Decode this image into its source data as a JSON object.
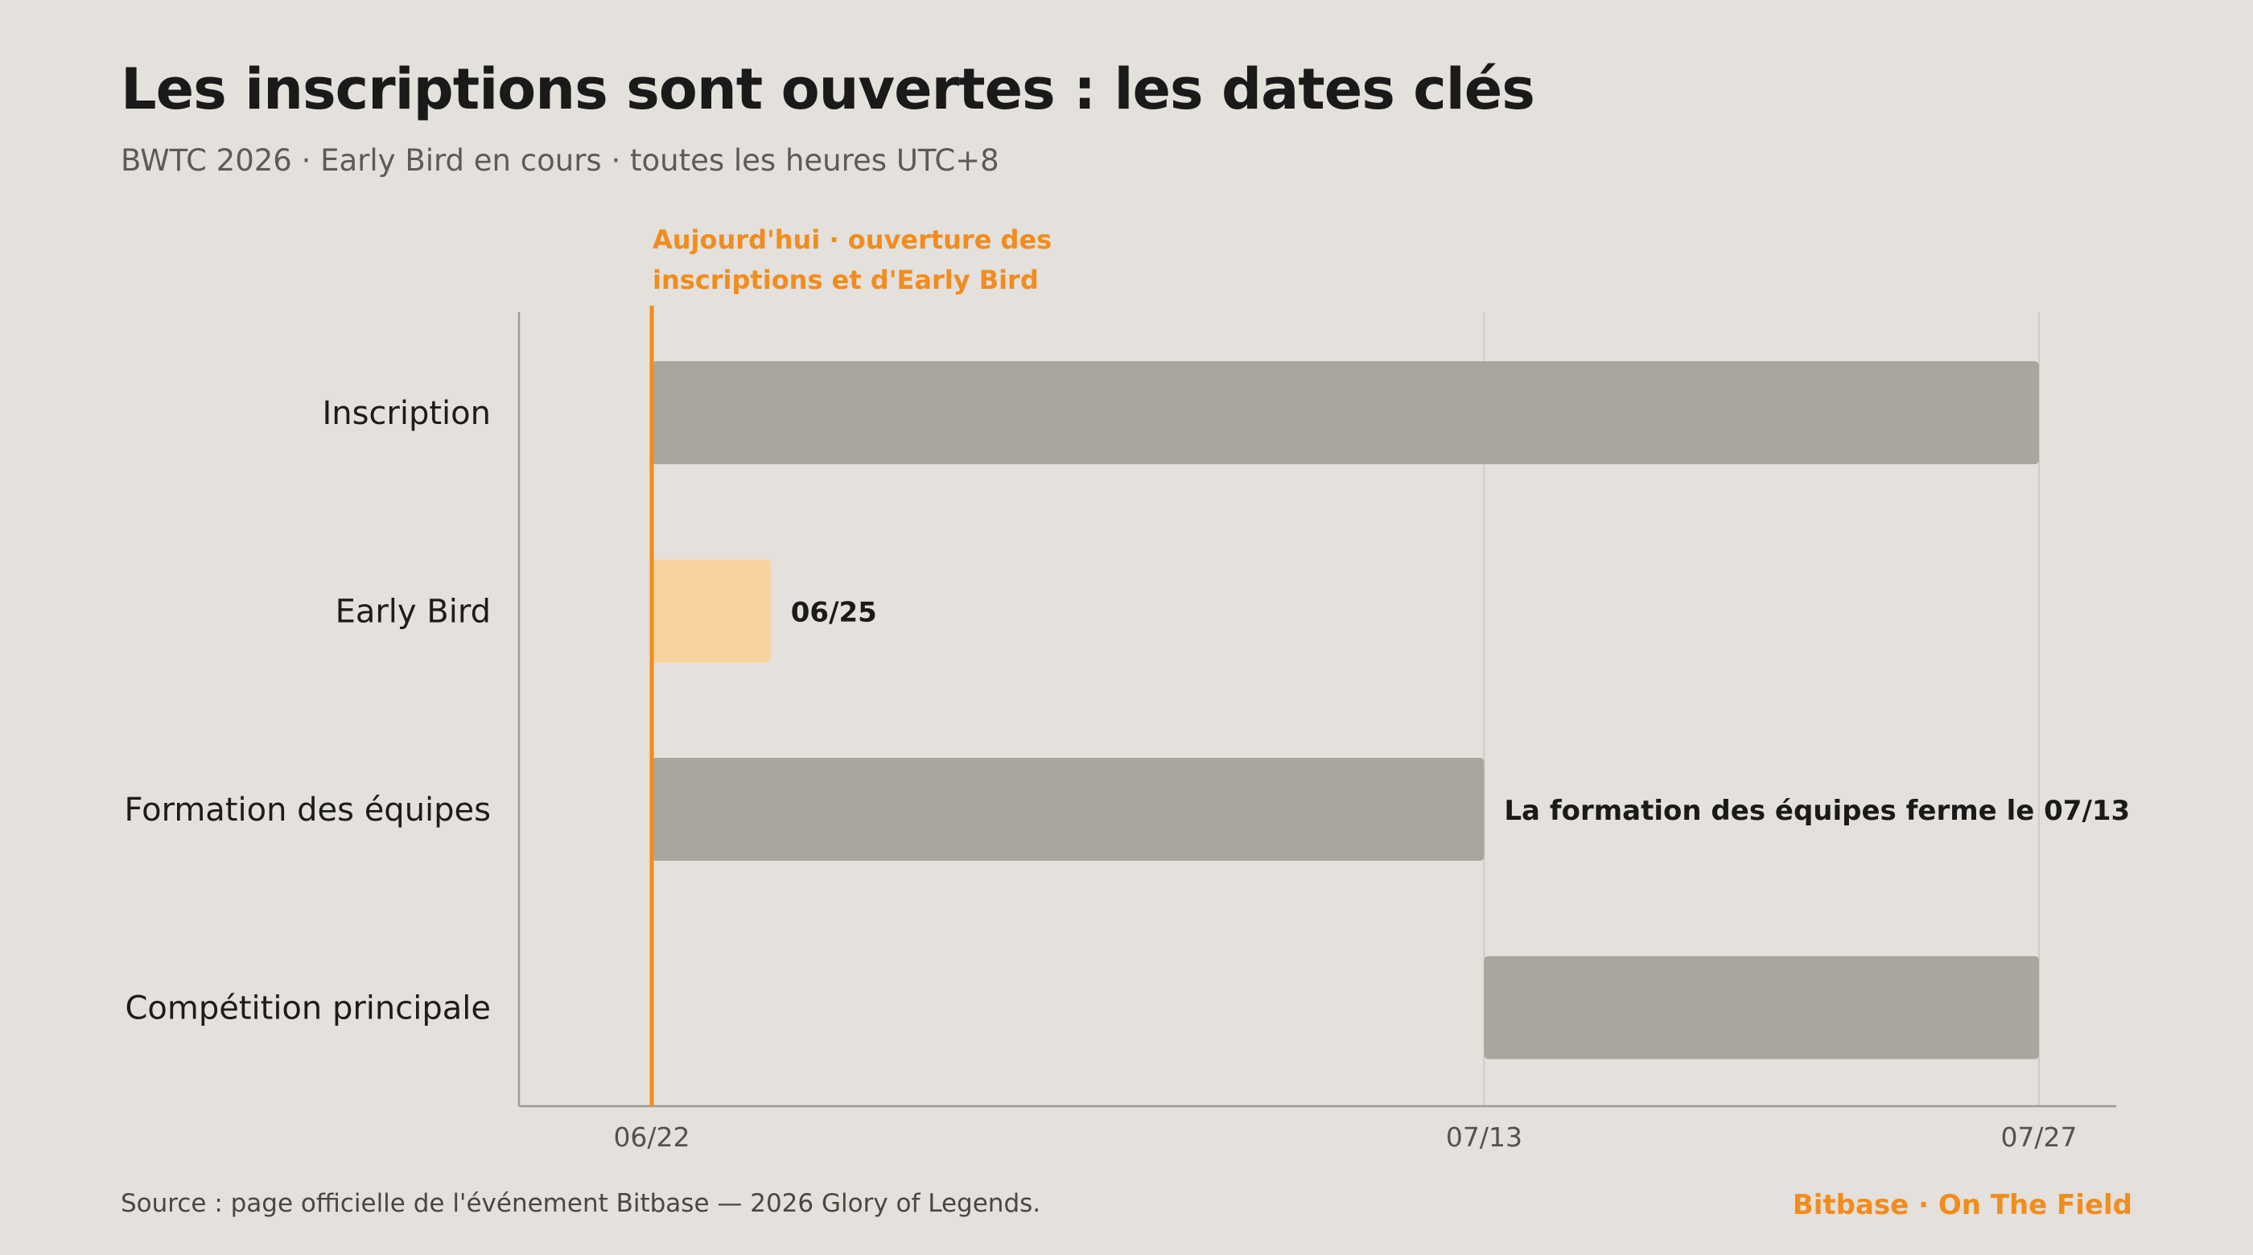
{
  "header": {
    "title": "Les inscriptions sont ouvertes : les dates clés",
    "subtitle": "BWTC 2026 · Early Bird en cours · toutes les heures UTC+8"
  },
  "footer": {
    "source": "Source : page officielle de l'événement Bitbase — 2026 Glory of Legends.",
    "brand": "Bitbase · On The Field"
  },
  "colors": {
    "bar_default": "#aaa59f",
    "bar_highlight": "#f9d39f",
    "accent": "#f28c1e",
    "axis": "#9e9994",
    "grid": "#d0cbc5",
    "background": "#e4e0db"
  },
  "chart_data": {
    "type": "gantt",
    "title": "Les inscriptions sont ouvertes : les dates clés",
    "x_axis": {
      "type": "date",
      "year": 2026,
      "range": [
        "2026-06-22",
        "2026-07-27"
      ],
      "ticks": [
        {
          "date": "2026-06-22",
          "label": "06/22"
        },
        {
          "date": "2026-07-13",
          "label": "07/13"
        },
        {
          "date": "2026-07-27",
          "label": "07/27"
        }
      ],
      "grid": true
    },
    "tasks": [
      {
        "label": "Inscription",
        "start": "2026-06-22",
        "end": "2026-07-27",
        "highlight": false,
        "annotation": ""
      },
      {
        "label": "Early Bird",
        "start": "2026-06-22",
        "end": "2026-06-25",
        "highlight": true,
        "annotation": "06/25"
      },
      {
        "label": "Formation des équipes",
        "start": "2026-06-22",
        "end": "2026-07-13",
        "highlight": false,
        "annotation": "La formation des équipes ferme le 07/13"
      },
      {
        "label": "Compétition principale",
        "start": "2026-07-13",
        "end": "2026-07-27",
        "highlight": false,
        "annotation": ""
      }
    ],
    "today_marker": {
      "date": "2026-06-22",
      "label_line1": "Aujourd'hui · ouverture des",
      "label_line2": "inscriptions et d'Early Bird"
    }
  }
}
